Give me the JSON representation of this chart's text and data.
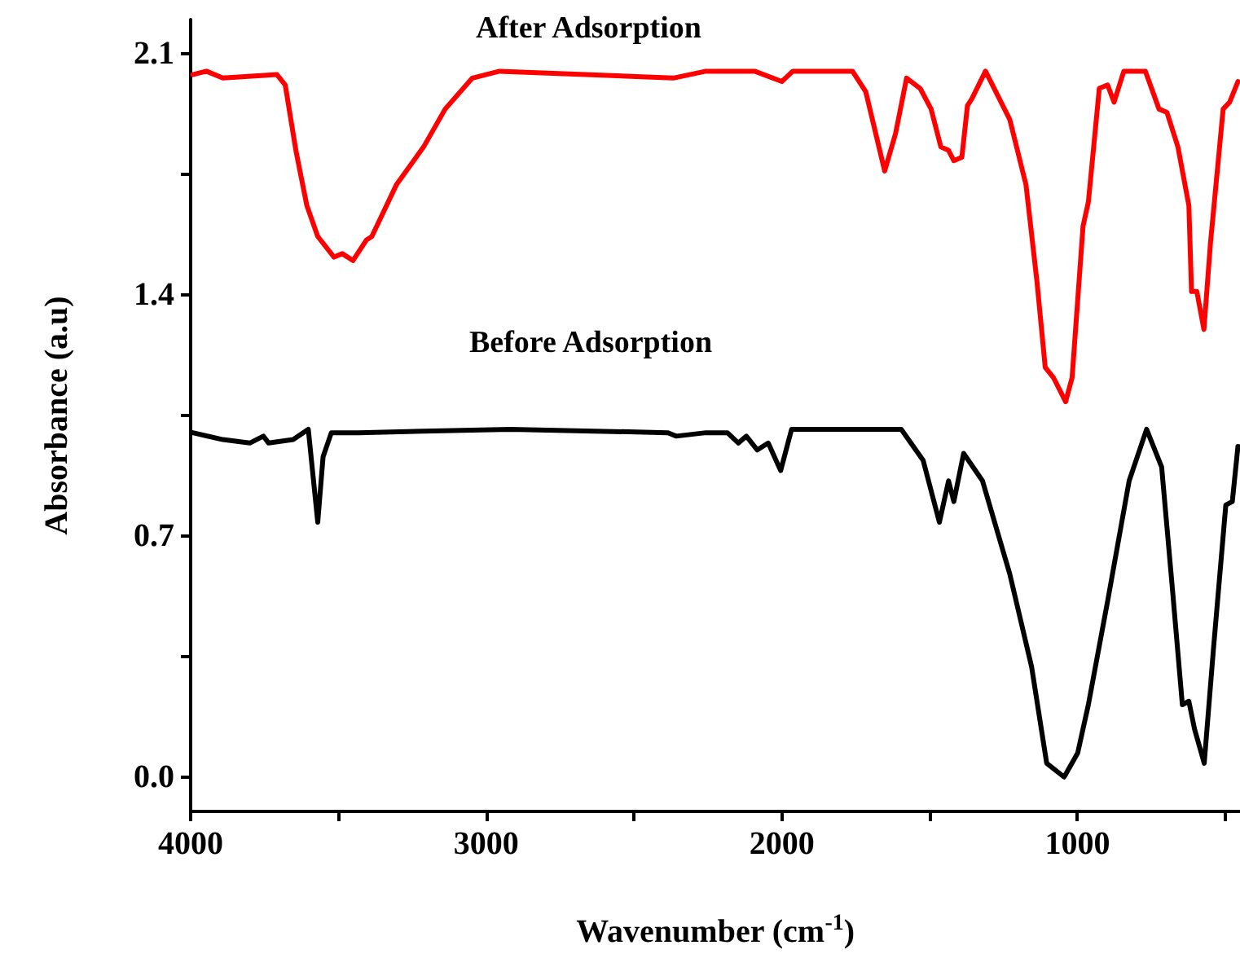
{
  "chart_data": {
    "type": "line",
    "xlabel": "Wavenumber (cm$^{-1}$)",
    "ylabel": "Absorbance (a.u)",
    "xlim": [
      4000,
      450
    ],
    "xticks": [
      4000,
      {
        "value": 3500,
        "label": null
      },
      3000,
      {
        "value": 2500,
        "label": null
      },
      2000,
      {
        "value": 1500,
        "label": null
      },
      1000,
      {
        "value": 500,
        "label": null
      }
    ],
    "ylim": [
      -0.1,
      2.2
    ],
    "yticks": [
      "0.0",
      {
        "value": 0.35,
        "label": null
      },
      {
        "value": 0.7,
        "label": "0.7"
      },
      {
        "value": 1.05,
        "label": null
      },
      {
        "value": 1.4,
        "label": "1.4"
      },
      {
        "value": 1.75,
        "label": null
      },
      {
        "value": 2.1,
        "label": "2.1"
      }
    ],
    "grid": false,
    "legend": false,
    "marker": "none",
    "line_style": "solid",
    "series": [
      {
        "name": "After Adsorption",
        "color": "#ff0000",
        "x": [
          3993,
          3947,
          3891,
          3708,
          3680,
          3644,
          3607,
          3570,
          3515,
          3487,
          3451,
          3405,
          3387,
          3304,
          3212,
          3139,
          3047,
          2955,
          2367,
          2257,
          2092,
          2000,
          1963,
          1761,
          1716,
          1652,
          1615,
          1578,
          1532,
          1495,
          1462,
          1436,
          1418,
          1391,
          1372,
          1357,
          1311,
          1229,
          1174,
          1137,
          1109,
          1081,
          1040,
          1018,
          981,
          963,
          926,
          898,
          876,
          843,
          770,
          724,
          697,
          660,
          623,
          614,
          596,
          572,
          550,
          507,
          485,
          457
        ],
        "values": [
          2.04,
          2.05,
          2.03,
          2.04,
          2.01,
          1.82,
          1.66,
          1.57,
          1.51,
          1.52,
          1.5,
          1.56,
          1.57,
          1.72,
          1.83,
          1.94,
          2.03,
          2.05,
          2.03,
          2.05,
          2.05,
          2.02,
          2.05,
          2.05,
          1.99,
          1.76,
          1.87,
          2.03,
          2.0,
          1.94,
          1.83,
          1.82,
          1.79,
          1.8,
          1.95,
          1.97,
          2.05,
          1.91,
          1.72,
          1.44,
          1.19,
          1.16,
          1.09,
          1.16,
          1.6,
          1.67,
          2.0,
          2.01,
          1.96,
          2.05,
          2.05,
          1.94,
          1.93,
          1.83,
          1.66,
          1.41,
          1.41,
          1.3,
          1.55,
          1.94,
          1.96,
          2.02
        ]
      },
      {
        "name": "Before Adsorption",
        "color": "#000000",
        "x": [
          3993,
          3891,
          3800,
          3754,
          3736,
          3653,
          3602,
          3570,
          3552,
          3524,
          3433,
          2919,
          2385,
          2358,
          2257,
          2184,
          2147,
          2120,
          2083,
          2046,
          2004,
          1967,
          1596,
          1522,
          1467,
          1436,
          1418,
          1385,
          1321,
          1229,
          1155,
          1104,
          1045,
          999,
          963,
          898,
          825,
          766,
          715,
          678,
          645,
          623,
          604,
          571,
          540,
          498,
          476,
          457
        ],
        "values": [
          1.0,
          0.98,
          0.97,
          0.99,
          0.97,
          0.98,
          1.01,
          0.74,
          0.93,
          1.0,
          1.0,
          1.01,
          1.0,
          0.99,
          1.0,
          1.0,
          0.97,
          0.99,
          0.95,
          0.97,
          0.89,
          1.01,
          1.01,
          0.92,
          0.74,
          0.86,
          0.8,
          0.94,
          0.86,
          0.59,
          0.32,
          0.04,
          0.0,
          0.07,
          0.21,
          0.51,
          0.86,
          1.01,
          0.9,
          0.54,
          0.21,
          0.22,
          0.14,
          0.04,
          0.37,
          0.79,
          0.8,
          0.96
        ]
      }
    ]
  }
}
